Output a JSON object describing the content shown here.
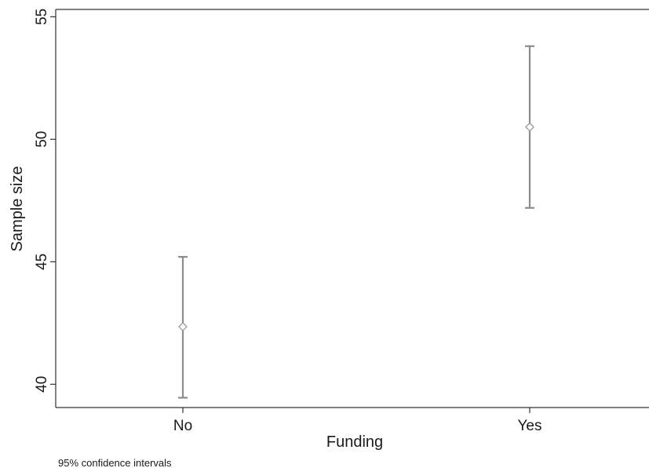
{
  "chart_data": {
    "type": "scatter",
    "subtype": "error-bar",
    "title": "",
    "xlabel": "Funding",
    "ylabel": "Sample size",
    "categories": [
      "No",
      "Yes"
    ],
    "points": [
      {
        "category": "No",
        "estimate": 42.35,
        "lower": 39.45,
        "upper": 45.2
      },
      {
        "category": "Yes",
        "estimate": 50.5,
        "lower": 47.2,
        "upper": 53.8
      }
    ],
    "ylim": [
      39.05,
      55.3
    ],
    "yticks": [
      40,
      45,
      50,
      55
    ],
    "note": "95% confidence intervals",
    "grid": false,
    "legend": "none",
    "colors": {
      "bar": "#8c8c8c",
      "marker": "#9a9a9a",
      "axis": "#333333"
    }
  }
}
